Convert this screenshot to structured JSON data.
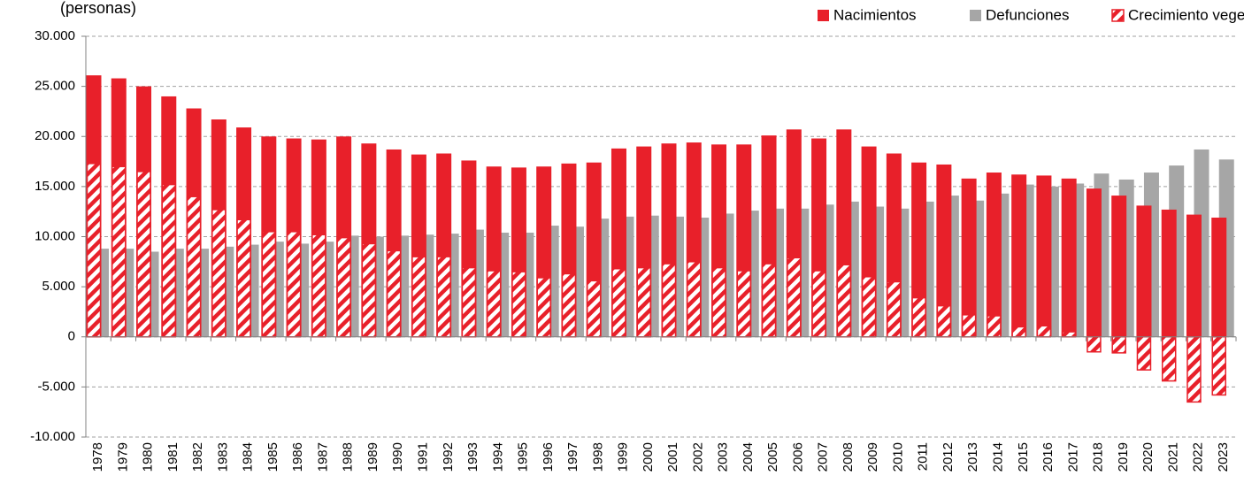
{
  "chart_data": {
    "type": "bar",
    "title": "(personas)",
    "categories": [
      "1978",
      "1979",
      "1980",
      "1981",
      "1982",
      "1983",
      "1984",
      "1985",
      "1986",
      "1987",
      "1988",
      "1989",
      "1990",
      "1991",
      "1992",
      "1993",
      "1994",
      "1995",
      "1996",
      "1997",
      "1998",
      "1999",
      "2000",
      "2001",
      "2002",
      "2003",
      "2004",
      "2005",
      "2006",
      "2007",
      "2008",
      "2009",
      "2010",
      "2011",
      "2012",
      "2013",
      "2014",
      "2015",
      "2016",
      "2017",
      "2018",
      "2019",
      "2020",
      "2021",
      "2022",
      "2023"
    ],
    "series": [
      {
        "name": "Nacimientos",
        "color": "#e8202a",
        "values": [
          26100,
          25800,
          25000,
          24000,
          22800,
          21700,
          20900,
          20000,
          19800,
          19700,
          20000,
          19300,
          18700,
          18200,
          18300,
          17600,
          17000,
          16900,
          17000,
          17300,
          17400,
          18800,
          19000,
          19300,
          19400,
          19200,
          19200,
          20100,
          20700,
          19800,
          20700,
          19000,
          18300,
          17400,
          17200,
          15800,
          16400,
          16200,
          16100,
          15800,
          14800,
          14100,
          13100,
          12700,
          12200,
          11900
        ]
      },
      {
        "name": "Defunciones",
        "color": "#a6a6a6",
        "values": [
          8800,
          8800,
          8500,
          8800,
          8800,
          9000,
          9200,
          9500,
          9300,
          9500,
          10100,
          10000,
          10100,
          10200,
          10300,
          10700,
          10400,
          10400,
          11100,
          11000,
          11800,
          12000,
          12100,
          12000,
          11900,
          12300,
          12600,
          12800,
          12800,
          13200,
          13500,
          13000,
          12800,
          13500,
          14100,
          13600,
          14300,
          15200,
          15000,
          15300,
          16300,
          15700,
          16400,
          17100,
          18700,
          17700
        ]
      },
      {
        "name": "Crecimiento vegetativo",
        "color": "#e8202a",
        "values": [
          17300,
          17000,
          16500,
          15200,
          14000,
          12700,
          11700,
          10500,
          10500,
          10200,
          9900,
          9300,
          8600,
          8000,
          8000,
          6900,
          6600,
          6500,
          5900,
          6300,
          5600,
          6800,
          6900,
          7300,
          7500,
          6900,
          6600,
          7300,
          7900,
          6600,
          7200,
          6000,
          5500,
          3900,
          3100,
          2200,
          2100,
          1000,
          1100,
          500,
          -1500,
          -1600,
          -3300,
          -4400,
          -6500,
          -5800
        ]
      }
    ],
    "ylim": [
      -10000,
      30000
    ],
    "yticks": [
      {
        "value": -10000,
        "label": "-10.000"
      },
      {
        "value": -5000,
        "label": "-5.000"
      },
      0,
      {
        "value": 5000,
        "label": "5.000"
      },
      {
        "value": 10000,
        "label": "10.000"
      },
      {
        "value": 15000,
        "label": "15.000"
      },
      {
        "value": 20000,
        "label": "20.000"
      },
      {
        "value": 25000,
        "label": "25.000"
      },
      {
        "value": 30000,
        "label": "30.000"
      }
    ],
    "grid": true,
    "legend": "top-right"
  }
}
